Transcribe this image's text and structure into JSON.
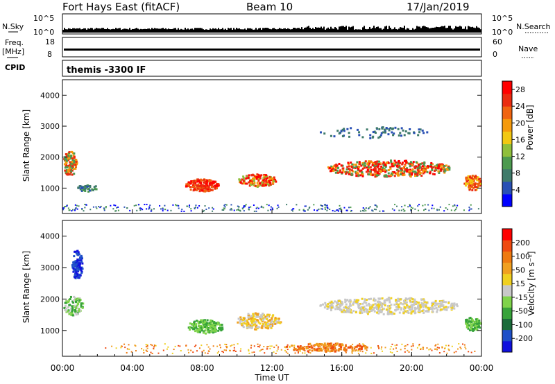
{
  "header": {
    "station": "Fort Hays East (fitACF)",
    "beam": "Beam 10",
    "date": "17/Jan/2019"
  },
  "top_panels": {
    "nsky_label": "N.Sky",
    "nsky_ticks": [
      "10^5",
      "10^0"
    ],
    "nsearch_label": "N.Search",
    "nsearch_ticks": [
      "10^5",
      "10^0"
    ],
    "freq_label": "Freq.",
    "freq_unit": "[MHz]",
    "freq_ticks": [
      "18",
      "8"
    ],
    "nave_label": "Nave",
    "nave_ticks": [
      "60",
      "0"
    ],
    "cpid_label": "CPID",
    "cpid_text": "themis -3300 IF"
  },
  "colors": {
    "power_scale": [
      "#0000ff",
      "#2950b5",
      "#3f7b6a",
      "#4c9a4f",
      "#8fbf3b",
      "#f2c812",
      "#f59a0c",
      "#f06410",
      "#ea2c10",
      "#ff0000"
    ],
    "velocity_scale": [
      "#1010dd",
      "#1e50c8",
      "#1a6b3a",
      "#37a33a",
      "#7fd34a",
      "#c8c8c8",
      "#f0d020",
      "#f0a020",
      "#ee7a10",
      "#ee4a10",
      "#ff0000"
    ]
  },
  "chart_data": [
    {
      "type": "heatmap",
      "panel": "power",
      "ylabel": "Slant Range [km]",
      "ylim": [
        180,
        4500
      ],
      "yticks": [
        "1000",
        "2000",
        "3000",
        "4000"
      ],
      "xlim_hours": [
        0,
        24
      ],
      "colorbar_label": "Power [dB]",
      "colorbar_ticks": [
        "4",
        "8",
        "12",
        "16",
        "20",
        "24",
        "28"
      ],
      "colorbar_range": [
        0,
        30
      ]
    },
    {
      "type": "heatmap",
      "panel": "velocity",
      "ylabel": "Slant Range [km]",
      "ylim": [
        180,
        4500
      ],
      "yticks": [
        "1000",
        "2000",
        "3000",
        "4000"
      ],
      "xlim_hours": [
        0,
        24
      ],
      "colorbar_label": "Velocity [m s⁻¹]",
      "colorbar_ticks": [
        "200",
        "100",
        "50",
        "15",
        "-15",
        "-50",
        "-100",
        "-200"
      ]
    }
  ],
  "xaxis": {
    "ticks": [
      "00:00",
      "04:00",
      "08:00",
      "12:00",
      "16:00",
      "20:00",
      "00:00"
    ],
    "label": "Time UT"
  }
}
